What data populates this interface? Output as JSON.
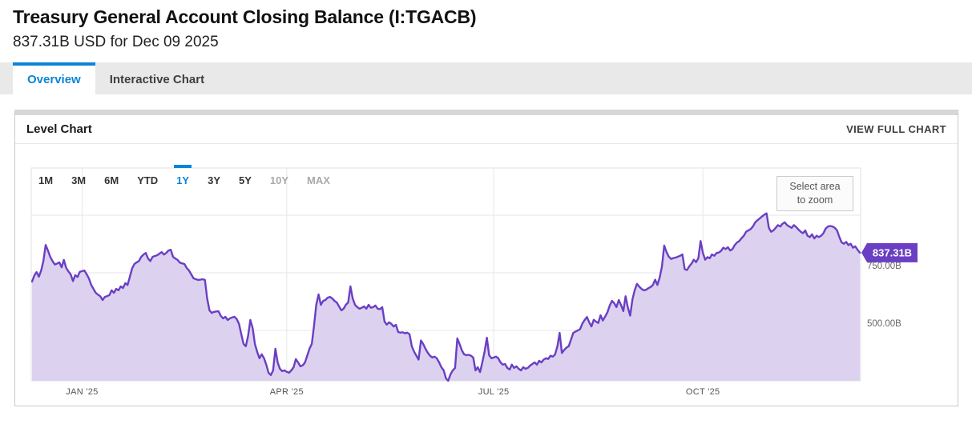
{
  "header": {
    "title": "Treasury General Account Closing Balance (I:TGACB)",
    "subtitle": "837.31B USD for Dec 09 2025"
  },
  "tabs": [
    {
      "label": "Overview",
      "active": true
    },
    {
      "label": "Interactive Chart",
      "active": false
    }
  ],
  "card": {
    "title": "Level Chart",
    "action_label": "VIEW FULL CHART"
  },
  "colors": {
    "accent_blue": "#0a84d6",
    "line_purple": "#6a3fc3",
    "fill_purple": "#dcd2f0",
    "badge_purple": "#6a3fc3",
    "grid": "#e7e7e7",
    "plot_border": "#e2e2e2",
    "card_border": "#c9c9c9",
    "tabbar_bg": "#e9e9e9",
    "axis_text": "#666666"
  },
  "chart_data": {
    "type": "area",
    "title": "Treasury General Account Closing Balance",
    "unit": "USD billions",
    "latest_value": 837.31,
    "latest_value_label": "837.31B",
    "latest_date": "Dec 09 2025",
    "range_buttons": [
      {
        "label": "1M"
      },
      {
        "label": "3M"
      },
      {
        "label": "6M"
      },
      {
        "label": "YTD"
      },
      {
        "label": "1Y",
        "active": true
      },
      {
        "label": "3Y"
      },
      {
        "label": "5Y"
      },
      {
        "label": "10Y",
        "disabled": true
      },
      {
        "label": "MAX",
        "disabled": true
      }
    ],
    "select_area_lines": [
      "Select area",
      "to zoom"
    ],
    "x_start_date": "2024-12-10",
    "x_end_date": "2025-12-09",
    "total_days": 364,
    "x_ticks": [
      {
        "label": "JAN '25",
        "day": 22
      },
      {
        "label": "APR '25",
        "day": 112
      },
      {
        "label": "JUL '25",
        "day": 203
      },
      {
        "label": "OCT '25",
        "day": 295
      }
    ],
    "y_ticks": [
      {
        "label": "750.00B",
        "value": 750
      },
      {
        "label": "500.00B",
        "value": 500
      }
    ],
    "y_gridline_values": [
      1000,
      750,
      500
    ],
    "y_axis_side": "right",
    "ylim": [
      281,
      1205
    ],
    "grid": true,
    "series_format": "[day_offset_from_2024-12-10, billions_usd]",
    "series": [
      [
        0,
        712
      ],
      [
        1,
        738
      ],
      [
        2,
        753
      ],
      [
        3,
        733
      ],
      [
        4,
        760
      ],
      [
        5,
        802
      ],
      [
        6,
        871
      ],
      [
        7,
        846
      ],
      [
        8,
        819
      ],
      [
        9,
        801
      ],
      [
        10,
        786
      ],
      [
        11,
        790
      ],
      [
        12,
        795
      ],
      [
        13,
        774
      ],
      [
        14,
        806
      ],
      [
        15,
        771
      ],
      [
        16,
        756
      ],
      [
        17,
        743
      ],
      [
        18,
        714
      ],
      [
        19,
        740
      ],
      [
        20,
        732
      ],
      [
        21,
        754
      ],
      [
        22,
        757
      ],
      [
        23,
        760
      ],
      [
        24,
        744
      ],
      [
        25,
        726
      ],
      [
        26,
        698
      ],
      [
        27,
        680
      ],
      [
        28,
        663
      ],
      [
        29,
        655
      ],
      [
        30,
        648
      ],
      [
        31,
        632
      ],
      [
        32,
        645
      ],
      [
        33,
        649
      ],
      [
        34,
        653
      ],
      [
        35,
        674
      ],
      [
        36,
        663
      ],
      [
        37,
        680
      ],
      [
        38,
        674
      ],
      [
        39,
        691
      ],
      [
        40,
        684
      ],
      [
        41,
        705
      ],
      [
        42,
        697
      ],
      [
        43,
        732
      ],
      [
        44,
        769
      ],
      [
        45,
        788
      ],
      [
        46,
        795
      ],
      [
        47,
        801
      ],
      [
        48,
        819
      ],
      [
        49,
        829
      ],
      [
        50,
        836
      ],
      [
        51,
        812
      ],
      [
        52,
        801
      ],
      [
        53,
        819
      ],
      [
        54,
        823
      ],
      [
        55,
        826
      ],
      [
        56,
        833
      ],
      [
        57,
        840
      ],
      [
        58,
        829
      ],
      [
        59,
        836
      ],
      [
        60,
        847
      ],
      [
        61,
        850
      ],
      [
        62,
        819
      ],
      [
        63,
        812
      ],
      [
        64,
        806
      ],
      [
        65,
        794
      ],
      [
        66,
        791
      ],
      [
        67,
        788
      ],
      [
        68,
        771
      ],
      [
        69,
        760
      ],
      [
        70,
        743
      ],
      [
        71,
        726
      ],
      [
        72,
        722
      ],
      [
        73,
        719
      ],
      [
        74,
        720
      ],
      [
        75,
        722
      ],
      [
        76,
        719
      ],
      [
        77,
        639
      ],
      [
        78,
        587
      ],
      [
        79,
        576
      ],
      [
        80,
        580
      ],
      [
        81,
        582
      ],
      [
        82,
        583
      ],
      [
        83,
        563
      ],
      [
        84,
        552
      ],
      [
        85,
        559
      ],
      [
        86,
        545
      ],
      [
        87,
        552
      ],
      [
        88,
        556
      ],
      [
        89,
        559
      ],
      [
        90,
        549
      ],
      [
        91,
        528
      ],
      [
        92,
        483
      ],
      [
        93,
        441
      ],
      [
        94,
        431
      ],
      [
        95,
        476
      ],
      [
        96,
        545
      ],
      [
        97,
        510
      ],
      [
        98,
        441
      ],
      [
        99,
        406
      ],
      [
        100,
        379
      ],
      [
        101,
        396
      ],
      [
        102,
        379
      ],
      [
        103,
        351
      ],
      [
        104,
        316
      ],
      [
        105,
        306
      ],
      [
        106,
        326
      ],
      [
        107,
        420
      ],
      [
        108,
        361
      ],
      [
        109,
        333
      ],
      [
        110,
        323
      ],
      [
        111,
        326
      ],
      [
        112,
        320
      ],
      [
        113,
        316
      ],
      [
        114,
        326
      ],
      [
        115,
        340
      ],
      [
        116,
        375
      ],
      [
        117,
        361
      ],
      [
        118,
        344
      ],
      [
        119,
        348
      ],
      [
        120,
        360
      ],
      [
        121,
        390
      ],
      [
        122,
        420
      ],
      [
        123,
        441
      ],
      [
        124,
        520
      ],
      [
        125,
        612
      ],
      [
        126,
        656
      ],
      [
        127,
        611
      ],
      [
        128,
        628
      ],
      [
        129,
        632
      ],
      [
        130,
        642
      ],
      [
        131,
        645
      ],
      [
        132,
        639
      ],
      [
        133,
        628
      ],
      [
        134,
        621
      ],
      [
        135,
        604
      ],
      [
        136,
        587
      ],
      [
        137,
        594
      ],
      [
        138,
        611
      ],
      [
        139,
        621
      ],
      [
        140,
        691
      ],
      [
        141,
        639
      ],
      [
        142,
        611
      ],
      [
        143,
        601
      ],
      [
        144,
        594
      ],
      [
        145,
        598
      ],
      [
        146,
        604
      ],
      [
        147,
        594
      ],
      [
        148,
        611
      ],
      [
        149,
        598
      ],
      [
        150,
        601
      ],
      [
        151,
        608
      ],
      [
        152,
        594
      ],
      [
        153,
        592
      ],
      [
        154,
        601
      ],
      [
        155,
        538
      ],
      [
        156,
        525
      ],
      [
        157,
        535
      ],
      [
        158,
        528
      ],
      [
        159,
        517
      ],
      [
        160,
        524
      ],
      [
        161,
        493
      ],
      [
        162,
        490
      ],
      [
        163,
        492
      ],
      [
        164,
        487
      ],
      [
        165,
        490
      ],
      [
        166,
        483
      ],
      [
        167,
        431
      ],
      [
        168,
        407
      ],
      [
        169,
        390
      ],
      [
        170,
        373
      ],
      [
        171,
        456
      ],
      [
        172,
        441
      ],
      [
        173,
        420
      ],
      [
        174,
        403
      ],
      [
        175,
        390
      ],
      [
        176,
        382
      ],
      [
        177,
        386
      ],
      [
        178,
        379
      ],
      [
        179,
        361
      ],
      [
        180,
        340
      ],
      [
        181,
        326
      ],
      [
        182,
        292
      ],
      [
        183,
        281
      ],
      [
        184,
        309
      ],
      [
        185,
        326
      ],
      [
        186,
        337
      ],
      [
        187,
        465
      ],
      [
        188,
        441
      ],
      [
        189,
        413
      ],
      [
        190,
        396
      ],
      [
        191,
        392
      ],
      [
        192,
        394
      ],
      [
        193,
        390
      ],
      [
        194,
        382
      ],
      [
        195,
        326
      ],
      [
        196,
        340
      ],
      [
        197,
        319
      ],
      [
        198,
        361
      ],
      [
        199,
        407
      ],
      [
        200,
        468
      ],
      [
        201,
        392
      ],
      [
        202,
        379
      ],
      [
        203,
        382
      ],
      [
        204,
        386
      ],
      [
        205,
        379
      ],
      [
        206,
        361
      ],
      [
        207,
        351
      ],
      [
        208,
        354
      ],
      [
        209,
        337
      ],
      [
        210,
        330
      ],
      [
        211,
        351
      ],
      [
        212,
        337
      ],
      [
        213,
        344
      ],
      [
        214,
        333
      ],
      [
        215,
        326
      ],
      [
        216,
        340
      ],
      [
        217,
        333
      ],
      [
        218,
        337
      ],
      [
        219,
        347
      ],
      [
        220,
        354
      ],
      [
        221,
        361
      ],
      [
        222,
        351
      ],
      [
        223,
        368
      ],
      [
        224,
        361
      ],
      [
        225,
        373
      ],
      [
        226,
        379
      ],
      [
        227,
        376
      ],
      [
        228,
        390
      ],
      [
        229,
        386
      ],
      [
        230,
        396
      ],
      [
        231,
        431
      ],
      [
        232,
        489
      ],
      [
        233,
        402
      ],
      [
        234,
        415
      ],
      [
        235,
        425
      ],
      [
        236,
        431
      ],
      [
        237,
        460
      ],
      [
        238,
        489
      ],
      [
        239,
        495
      ],
      [
        240,
        500
      ],
      [
        241,
        505
      ],
      [
        242,
        530
      ],
      [
        243,
        545
      ],
      [
        244,
        558
      ],
      [
        245,
        535
      ],
      [
        246,
        517
      ],
      [
        247,
        546
      ],
      [
        248,
        538
      ],
      [
        249,
        532
      ],
      [
        250,
        566
      ],
      [
        251,
        543
      ],
      [
        252,
        560
      ],
      [
        253,
        578
      ],
      [
        254,
        607
      ],
      [
        255,
        628
      ],
      [
        256,
        618
      ],
      [
        257,
        601
      ],
      [
        258,
        632
      ],
      [
        259,
        610
      ],
      [
        260,
        584
      ],
      [
        261,
        648
      ],
      [
        262,
        600
      ],
      [
        263,
        564
      ],
      [
        264,
        633
      ],
      [
        265,
        674
      ],
      [
        266,
        702
      ],
      [
        267,
        690
      ],
      [
        268,
        680
      ],
      [
        269,
        674
      ],
      [
        270,
        676
      ],
      [
        271,
        683
      ],
      [
        272,
        688
      ],
      [
        273,
        697
      ],
      [
        274,
        720
      ],
      [
        275,
        697
      ],
      [
        276,
        730
      ],
      [
        277,
        778
      ],
      [
        278,
        868
      ],
      [
        279,
        840
      ],
      [
        280,
        820
      ],
      [
        281,
        810
      ],
      [
        282,
        814
      ],
      [
        283,
        816
      ],
      [
        284,
        820
      ],
      [
        285,
        824
      ],
      [
        286,
        830
      ],
      [
        287,
        766
      ],
      [
        288,
        762
      ],
      [
        289,
        778
      ],
      [
        290,
        790
      ],
      [
        291,
        807
      ],
      [
        292,
        796
      ],
      [
        293,
        813
      ],
      [
        294,
        888
      ],
      [
        295,
        836
      ],
      [
        296,
        807
      ],
      [
        297,
        818
      ],
      [
        298,
        813
      ],
      [
        299,
        830
      ],
      [
        300,
        824
      ],
      [
        301,
        836
      ],
      [
        302,
        838
      ],
      [
        303,
        845
      ],
      [
        304,
        859
      ],
      [
        305,
        853
      ],
      [
        306,
        861
      ],
      [
        307,
        847
      ],
      [
        308,
        853
      ],
      [
        309,
        870
      ],
      [
        310,
        882
      ],
      [
        311,
        888
      ],
      [
        312,
        900
      ],
      [
        313,
        911
      ],
      [
        314,
        928
      ],
      [
        315,
        934
      ],
      [
        316,
        940
      ],
      [
        317,
        951
      ],
      [
        318,
        969
      ],
      [
        319,
        978
      ],
      [
        320,
        986
      ],
      [
        321,
        995
      ],
      [
        322,
        1002
      ],
      [
        323,
        1008
      ],
      [
        324,
        945
      ],
      [
        325,
        928
      ],
      [
        326,
        934
      ],
      [
        327,
        945
      ],
      [
        328,
        957
      ],
      [
        329,
        951
      ],
      [
        330,
        963
      ],
      [
        331,
        969
      ],
      [
        332,
        957
      ],
      [
        333,
        951
      ],
      [
        334,
        945
      ],
      [
        335,
        957
      ],
      [
        336,
        949
      ],
      [
        337,
        938
      ],
      [
        338,
        928
      ],
      [
        339,
        922
      ],
      [
        340,
        934
      ],
      [
        341,
        911
      ],
      [
        342,
        905
      ],
      [
        343,
        917
      ],
      [
        344,
        899
      ],
      [
        345,
        911
      ],
      [
        346,
        905
      ],
      [
        347,
        911
      ],
      [
        348,
        922
      ],
      [
        349,
        942
      ],
      [
        350,
        951
      ],
      [
        351,
        953
      ],
      [
        352,
        951
      ],
      [
        353,
        945
      ],
      [
        354,
        934
      ],
      [
        355,
        905
      ],
      [
        356,
        882
      ],
      [
        357,
        876
      ],
      [
        358,
        884
      ],
      [
        359,
        870
      ],
      [
        360,
        876
      ],
      [
        361,
        859
      ],
      [
        362,
        865
      ],
      [
        363,
        850
      ],
      [
        364,
        837.31
      ]
    ]
  }
}
